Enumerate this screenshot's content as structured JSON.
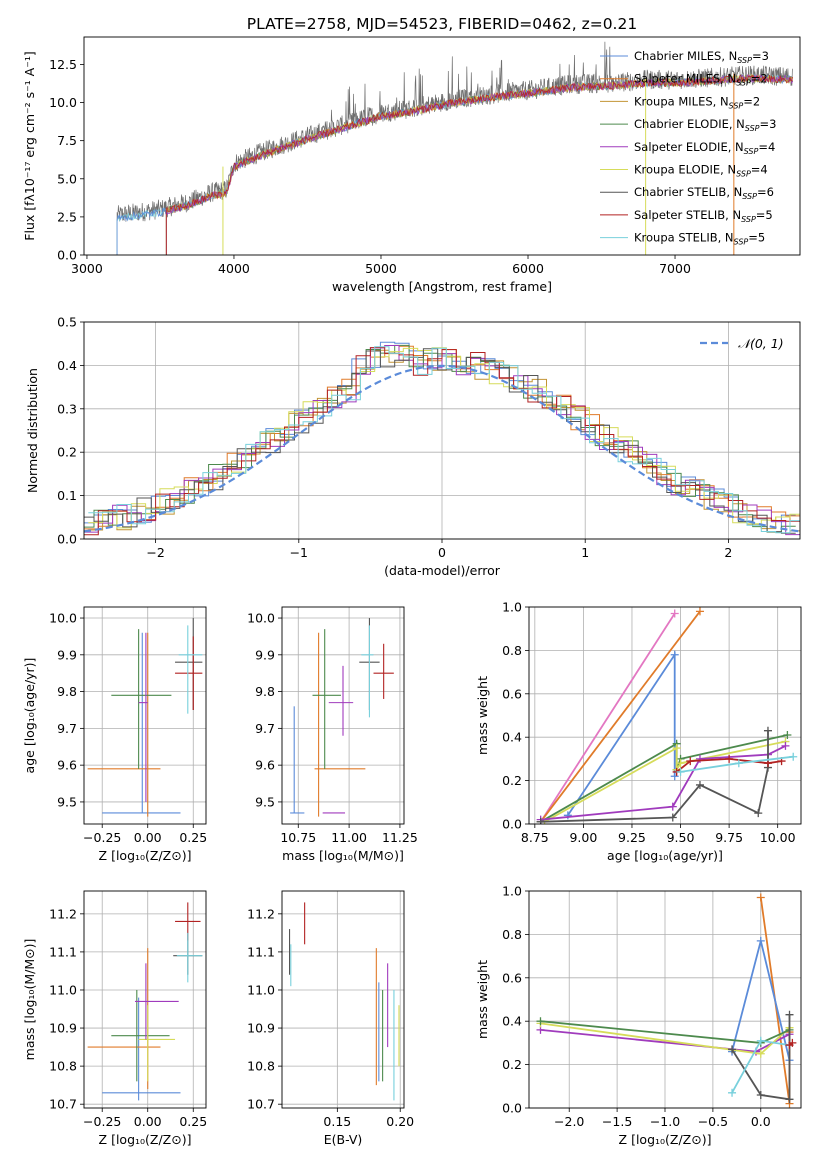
{
  "title": "PLATE=2758, MJD=54523, FIBERID=0462, z=0.21",
  "colors": {
    "c0": "#5b8bd9",
    "c1": "#e07b2a",
    "c2": "#c29435",
    "c3": "#4d8a4d",
    "c4": "#a03bbd",
    "c5": "#d6dc5a",
    "c6": "#555555",
    "c7": "#b22222",
    "c8": "#78d0dc",
    "pink": "#e377c2",
    "gauss": "#5b8bd9",
    "grid": "#b0b0b0"
  },
  "chart_data": [
    {
      "type": "line",
      "name": "spectrum",
      "xlabel": "wavelength [Angstrom, rest frame]",
      "ylabel": "Flux [fλ10⁻¹⁷ erg cm⁻² s⁻¹ A⁻¹]",
      "xlim": [
        2980,
        7850
      ],
      "ylim": [
        0,
        14.3
      ],
      "xticks": [
        3000,
        4000,
        5000,
        6000,
        7000
      ],
      "yticks": [
        "0.0",
        "2.5",
        "5.0",
        "7.5",
        "10.0",
        "12.5"
      ],
      "grid": false,
      "legend_position": "top-right",
      "legend": [
        {
          "label": "Chabrier MILES, N",
          "sub": "SSP",
          "suffix": "=3",
          "color": "c0"
        },
        {
          "label": "Salpeter MILES, N",
          "sub": "SSP",
          "suffix": "=2",
          "color": "c1"
        },
        {
          "label": "Kroupa MILES, N",
          "sub": "SSP",
          "suffix": "=2",
          "color": "c2"
        },
        {
          "label": "Chabrier ELODIE, N",
          "sub": "SSP",
          "suffix": "=3",
          "color": "c3"
        },
        {
          "label": "Salpeter ELODIE, N",
          "sub": "SSP",
          "suffix": "=4",
          "color": "c4"
        },
        {
          "label": "Kroupa ELODIE, N",
          "sub": "SSP",
          "suffix": "=4",
          "color": "c5"
        },
        {
          "label": "Chabrier STELIB, N",
          "sub": "SSP",
          "suffix": "=6",
          "color": "c6"
        },
        {
          "label": "Salpeter STELIB, N",
          "sub": "SSP",
          "suffix": "=5",
          "color": "c7"
        },
        {
          "label": "Kroupa STELIB, N",
          "sub": "SSP",
          "suffix": "=5",
          "color": "c8"
        }
      ],
      "observed_start": 3205,
      "observed_end": 7800,
      "model_start": 3540,
      "model_end": 7400,
      "continuum": [
        [
          3200,
          2.6
        ],
        [
          3500,
          3.0
        ],
        [
          3700,
          3.5
        ],
        [
          3850,
          4.1
        ],
        [
          3950,
          4.3
        ],
        [
          4000,
          6.0
        ],
        [
          4200,
          6.8
        ],
        [
          4500,
          7.8
        ],
        [
          4800,
          8.7
        ],
        [
          5000,
          9.3
        ],
        [
          5200,
          9.6
        ],
        [
          5500,
          10.2
        ],
        [
          5800,
          10.6
        ],
        [
          6000,
          10.8
        ],
        [
          6300,
          11.2
        ],
        [
          6600,
          11.3
        ],
        [
          6800,
          11.5
        ],
        [
          7000,
          11.5
        ],
        [
          7200,
          11.6
        ],
        [
          7500,
          11.8
        ],
        [
          7800,
          11.7
        ]
      ]
    },
    {
      "type": "histogram",
      "name": "residuals",
      "xlabel": "(data-model)/error",
      "ylabel": "Normed distribution",
      "xlim": [
        -2.5,
        2.5
      ],
      "ylim": [
        0,
        0.5
      ],
      "xticks": [
        "−2",
        "−1",
        "0",
        "1",
        "2"
      ],
      "xtick_values": [
        -2,
        -1,
        0,
        1,
        2
      ],
      "yticks": [
        "0.0",
        "0.1",
        "0.2",
        "0.3",
        "0.4",
        "0.5"
      ],
      "grid": true,
      "bin_width": 0.1,
      "bin_start": -2.5,
      "legend": "𝒩(0, 1)",
      "legend_position": "top-right",
      "gaussian": {
        "mean": 0,
        "sigma": 1
      }
    },
    {
      "type": "errorbar",
      "name": "age-vs-Z",
      "xlabel": "Z [log₁₀(Z/Z⊙)]",
      "ylabel": "age  [log₁₀(age/yr)]",
      "xlim": [
        -0.35,
        0.32
      ],
      "ylim": [
        9.44,
        10.03
      ],
      "xticks": [
        "−0.25",
        "0.00",
        "0.25"
      ],
      "xtick_values": [
        -0.25,
        0,
        0.25
      ],
      "yticks": [
        "9.5",
        "9.6",
        "9.7",
        "9.8",
        "9.9",
        "10.0"
      ],
      "ytick_values": [
        9.5,
        9.6,
        9.7,
        9.8,
        9.9,
        10.0
      ],
      "points": [
        {
          "c": "c0",
          "x": -0.03,
          "y": 9.47,
          "xlo": -0.25,
          "xhi": 0.18,
          "ylo": 9.47,
          "yhi": 9.96
        },
        {
          "c": "c1",
          "x": 0.0,
          "y": 9.59,
          "xlo": -0.33,
          "xhi": 0.07,
          "ylo": 9.46,
          "yhi": 9.96
        },
        {
          "c": "c3",
          "x": -0.05,
          "y": 9.79,
          "xlo": -0.2,
          "xhi": 0.13,
          "ylo": 9.59,
          "yhi": 9.97
        },
        {
          "c": "c4",
          "x": -0.01,
          "y": 9.77,
          "xlo": -0.05,
          "xhi": 0.0,
          "ylo": 9.5,
          "yhi": 9.96
        },
        {
          "c": "c6",
          "x": 0.25,
          "y": 9.88,
          "xlo": 0.15,
          "xhi": 0.3,
          "ylo": 9.75,
          "yhi": 10.0
        },
        {
          "c": "c7",
          "x": 0.25,
          "y": 9.85,
          "xlo": 0.15,
          "xhi": 0.3,
          "ylo": 9.75,
          "yhi": 9.95
        },
        {
          "c": "c8",
          "x": 0.22,
          "y": 9.9,
          "xlo": 0.17,
          "xhi": 0.3,
          "ylo": 9.74,
          "yhi": 9.98
        }
      ]
    },
    {
      "type": "errorbar",
      "name": "age-vs-mass",
      "xlabel": "mass [log₁₀(M/M⊙)]",
      "ylabel": "",
      "xlim": [
        10.67,
        11.27
      ],
      "ylim": [
        9.44,
        10.03
      ],
      "xticks": [
        "10.75",
        "11.00",
        "11.25"
      ],
      "xtick_values": [
        10.75,
        11.0,
        11.25
      ],
      "yticks": [
        "9.5",
        "9.6",
        "9.7",
        "9.8",
        "9.9",
        "10.0"
      ],
      "ytick_values": [
        9.5,
        9.6,
        9.7,
        9.8,
        9.9,
        10.0
      ],
      "points": [
        {
          "c": "c0",
          "x": 10.73,
          "y": 9.47,
          "xlo": 10.71,
          "xhi": 10.78,
          "ylo": 9.47,
          "yhi": 9.76
        },
        {
          "c": "c1",
          "x": 10.85,
          "y": 9.59,
          "xlo": 10.83,
          "xhi": 11.08,
          "ylo": 9.46,
          "yhi": 9.96
        },
        {
          "c": "c4",
          "x": 10.9,
          "y": 9.47,
          "xlo": 10.87,
          "xhi": 10.98,
          "ylo": 9.47,
          "yhi": 9.47
        },
        {
          "c": "c3",
          "x": 10.88,
          "y": 9.79,
          "xlo": 10.82,
          "xhi": 10.96,
          "ylo": 9.59,
          "yhi": 9.97
        },
        {
          "c": "c4",
          "x": 10.97,
          "y": 9.77,
          "xlo": 10.9,
          "xhi": 11.02,
          "ylo": 9.68,
          "yhi": 9.87
        },
        {
          "c": "c6",
          "x": 11.1,
          "y": 9.88,
          "xlo": 11.05,
          "xhi": 11.15,
          "ylo": 9.75,
          "yhi": 10.0
        },
        {
          "c": "c7",
          "x": 11.17,
          "y": 9.85,
          "xlo": 11.12,
          "xhi": 11.22,
          "ylo": 9.78,
          "yhi": 9.93
        },
        {
          "c": "c8",
          "x": 11.1,
          "y": 9.9,
          "xlo": 11.06,
          "xhi": 11.12,
          "ylo": 9.73,
          "yhi": 9.98
        }
      ]
    },
    {
      "type": "line",
      "name": "mass-weight-vs-age",
      "xlabel": "age  [log₁₀(age/yr)]",
      "ylabel": "mass weight",
      "xlim": [
        8.72,
        10.12
      ],
      "ylim": [
        0,
        1.0
      ],
      "xticks": [
        "8.75",
        "9.00",
        "9.25",
        "9.50",
        "9.75",
        "10.00"
      ],
      "xtick_values": [
        8.75,
        9.0,
        9.25,
        9.5,
        9.75,
        10.0
      ],
      "yticks": [
        "0.0",
        "0.2",
        "0.4",
        "0.6",
        "0.8",
        "1.0"
      ],
      "ytick_values": [
        0,
        0.2,
        0.4,
        0.6,
        0.8,
        1.0
      ],
      "grid": true,
      "series": [
        {
          "c": "pink",
          "pts": [
            [
              8.78,
              0.01
            ],
            [
              9.47,
              0.97
            ]
          ]
        },
        {
          "c": "c1",
          "pts": [
            [
              8.78,
              0.01
            ],
            [
              9.6,
              0.98
            ]
          ]
        },
        {
          "c": "c0",
          "pts": [
            [
              8.92,
              0.04
            ],
            [
              9.47,
              0.78
            ],
            [
              9.47,
              0.22
            ]
          ]
        },
        {
          "c": "c3",
          "pts": [
            [
              8.78,
              0.01
            ],
            [
              9.48,
              0.37
            ],
            [
              9.48,
              0.25
            ],
            [
              9.5,
              0.3
            ],
            [
              10.05,
              0.41
            ]
          ]
        },
        {
          "c": "c5",
          "pts": [
            [
              8.8,
              0.01
            ],
            [
              9.48,
              0.35
            ],
            [
              9.48,
              0.25
            ],
            [
              9.5,
              0.28
            ],
            [
              10.04,
              0.38
            ]
          ]
        },
        {
          "c": "c4",
          "pts": [
            [
              8.78,
              0.02
            ],
            [
              9.46,
              0.08
            ],
            [
              9.6,
              0.3
            ],
            [
              9.95,
              0.32
            ],
            [
              10.04,
              0.36
            ]
          ]
        },
        {
          "c": "c6",
          "pts": [
            [
              8.78,
              0.01
            ],
            [
              9.46,
              0.03
            ],
            [
              9.6,
              0.18
            ],
            [
              9.9,
              0.05
            ],
            [
              9.95,
              0.26
            ],
            [
              9.95,
              0.43
            ]
          ]
        },
        {
          "c": "c7",
          "pts": [
            [
              9.48,
              0.24
            ],
            [
              9.55,
              0.29
            ],
            [
              9.75,
              0.3
            ],
            [
              9.95,
              0.28
            ],
            [
              10.02,
              0.29
            ]
          ]
        },
        {
          "c": "c8",
          "pts": [
            [
              9.5,
              0.24
            ],
            [
              9.8,
              0.28
            ],
            [
              10.08,
              0.31
            ]
          ]
        }
      ]
    },
    {
      "type": "errorbar",
      "name": "mass-vs-Z",
      "xlabel": "Z [log₁₀(Z/Z⊙)]",
      "ylabel": "mass [log₁₀(M/M⊙)]",
      "xlim": [
        -0.35,
        0.32
      ],
      "ylim": [
        10.69,
        11.26
      ],
      "xticks": [
        "−0.25",
        "0.00",
        "0.25"
      ],
      "xtick_values": [
        -0.25,
        0,
        0.25
      ],
      "yticks": [
        "10.7",
        "10.8",
        "10.9",
        "11.0",
        "11.1",
        "11.2"
      ],
      "ytick_values": [
        10.7,
        10.8,
        10.9,
        11.0,
        11.1,
        11.2
      ],
      "points": [
        {
          "c": "c0",
          "x": -0.05,
          "y": 10.73,
          "xlo": -0.25,
          "xhi": 0.18,
          "ylo": 10.71,
          "yhi": 10.98
        },
        {
          "c": "c1",
          "x": 0.0,
          "y": 10.85,
          "xlo": -0.33,
          "xhi": 0.07,
          "ylo": 10.74,
          "yhi": 11.11
        },
        {
          "c": "c3",
          "x": -0.06,
          "y": 10.88,
          "xlo": -0.2,
          "xhi": 0.12,
          "ylo": 10.76,
          "yhi": 11.0
        },
        {
          "c": "c5",
          "x": 0.0,
          "y": 10.87,
          "xlo": -0.05,
          "xhi": 0.15,
          "ylo": 10.76,
          "yhi": 10.96
        },
        {
          "c": "c4",
          "x": -0.01,
          "y": 10.97,
          "xlo": -0.07,
          "xhi": 0.17,
          "ylo": 10.87,
          "yhi": 11.07
        },
        {
          "c": "c6",
          "x": 0.22,
          "y": 11.09,
          "xlo": 0.14,
          "xhi": 0.3,
          "ylo": 11.04,
          "yhi": 11.15
        },
        {
          "c": "c7",
          "x": 0.22,
          "y": 11.18,
          "xlo": 0.15,
          "xhi": 0.29,
          "ylo": 11.13,
          "yhi": 11.23
        },
        {
          "c": "c8",
          "x": 0.22,
          "y": 11.09,
          "xlo": 0.16,
          "xhi": 0.3,
          "ylo": 11.02,
          "yhi": 11.15
        }
      ]
    },
    {
      "type": "errorbar",
      "name": "mass-vs-ebv",
      "xlabel": "E(B-V)",
      "ylabel": "",
      "xlim": [
        0.106,
        0.203
      ],
      "ylim": [
        10.69,
        11.26
      ],
      "xticks": [
        "0.15",
        "0.20"
      ],
      "xtick_values": [
        0.15,
        0.2
      ],
      "yticks": [
        "10.7",
        "10.8",
        "10.9",
        "11.0",
        "11.1",
        "11.2"
      ],
      "ytick_values": [
        10.7,
        10.8,
        10.9,
        11.0,
        11.1,
        11.2
      ],
      "points": [
        {
          "c": "c6",
          "x": 0.112,
          "y": 11.1,
          "xlo": 0.112,
          "xhi": 0.112,
          "ylo": 11.04,
          "yhi": 11.16
        },
        {
          "c": "c8",
          "x": 0.113,
          "y": 11.06,
          "xlo": 0.113,
          "xhi": 0.113,
          "ylo": 11.01,
          "yhi": 11.12
        },
        {
          "c": "c7",
          "x": 0.124,
          "y": 11.17,
          "xlo": 0.124,
          "xhi": 0.124,
          "ylo": 11.12,
          "yhi": 11.23
        },
        {
          "c": "c1",
          "x": 0.181,
          "y": 10.93,
          "xlo": 0.181,
          "xhi": 0.181,
          "ylo": 10.75,
          "yhi": 11.11
        },
        {
          "c": "c0",
          "x": 0.183,
          "y": 10.89,
          "xlo": 0.183,
          "xhi": 0.183,
          "ylo": 10.76,
          "yhi": 11.02
        },
        {
          "c": "c3",
          "x": 0.186,
          "y": 10.88,
          "xlo": 0.186,
          "xhi": 0.186,
          "ylo": 10.76,
          "yhi": 11.0
        },
        {
          "c": "c4",
          "x": 0.19,
          "y": 10.96,
          "xlo": 0.19,
          "xhi": 0.19,
          "ylo": 10.85,
          "yhi": 11.07
        },
        {
          "c": "c8",
          "x": 0.195,
          "y": 10.86,
          "xlo": 0.195,
          "xhi": 0.195,
          "ylo": 10.71,
          "yhi": 11.0
        },
        {
          "c": "c5",
          "x": 0.199,
          "y": 10.88,
          "xlo": 0.199,
          "xhi": 0.199,
          "ylo": 10.8,
          "yhi": 10.96
        }
      ]
    },
    {
      "type": "line",
      "name": "mass-weight-vs-Z",
      "xlabel": "Z [log₁₀(Z/Z⊙)]",
      "ylabel": "mass weight",
      "xlim": [
        -2.42,
        0.42
      ],
      "ylim": [
        0,
        1.0
      ],
      "xticks": [
        "−2.0",
        "−1.5",
        "−1.0",
        "−0.5",
        "0.0"
      ],
      "xtick_values": [
        -2.0,
        -1.5,
        -1.0,
        -0.5,
        0.0
      ],
      "yticks": [
        "0.0",
        "0.2",
        "0.4",
        "0.6",
        "0.8",
        "1.0"
      ],
      "ytick_values": [
        0,
        0.2,
        0.4,
        0.6,
        0.8,
        1.0
      ],
      "grid": true,
      "series": [
        {
          "c": "c1",
          "pts": [
            [
              0.0,
              0.97
            ],
            [
              0.3,
              0.02
            ],
            [
              0.3,
              0.35
            ]
          ]
        },
        {
          "c": "c0",
          "pts": [
            [
              -0.3,
              0.26
            ],
            [
              0.0,
              0.77
            ],
            [
              0.3,
              0.22
            ]
          ]
        },
        {
          "c": "c4",
          "pts": [
            [
              -2.3,
              0.36
            ],
            [
              -0.05,
              0.26
            ],
            [
              0.3,
              0.34
            ]
          ]
        },
        {
          "c": "c5",
          "pts": [
            [
              -2.3,
              0.39
            ],
            [
              0.0,
              0.25
            ],
            [
              0.3,
              0.37
            ]
          ]
        },
        {
          "c": "c3",
          "pts": [
            [
              -2.3,
              0.4
            ],
            [
              0.0,
              0.3
            ],
            [
              0.3,
              0.36
            ]
          ]
        },
        {
          "c": "c6",
          "pts": [
            [
              -0.3,
              0.27
            ],
            [
              0.0,
              0.06
            ],
            [
              0.3,
              0.04
            ],
            [
              0.3,
              0.43
            ]
          ]
        },
        {
          "c": "c8",
          "pts": [
            [
              -0.3,
              0.07
            ],
            [
              0.0,
              0.31
            ],
            [
              0.3,
              0.29
            ]
          ]
        },
        {
          "c": "c7",
          "pts": [
            [
              0.3,
              0.29
            ],
            [
              0.33,
              0.3
            ]
          ]
        }
      ]
    }
  ]
}
